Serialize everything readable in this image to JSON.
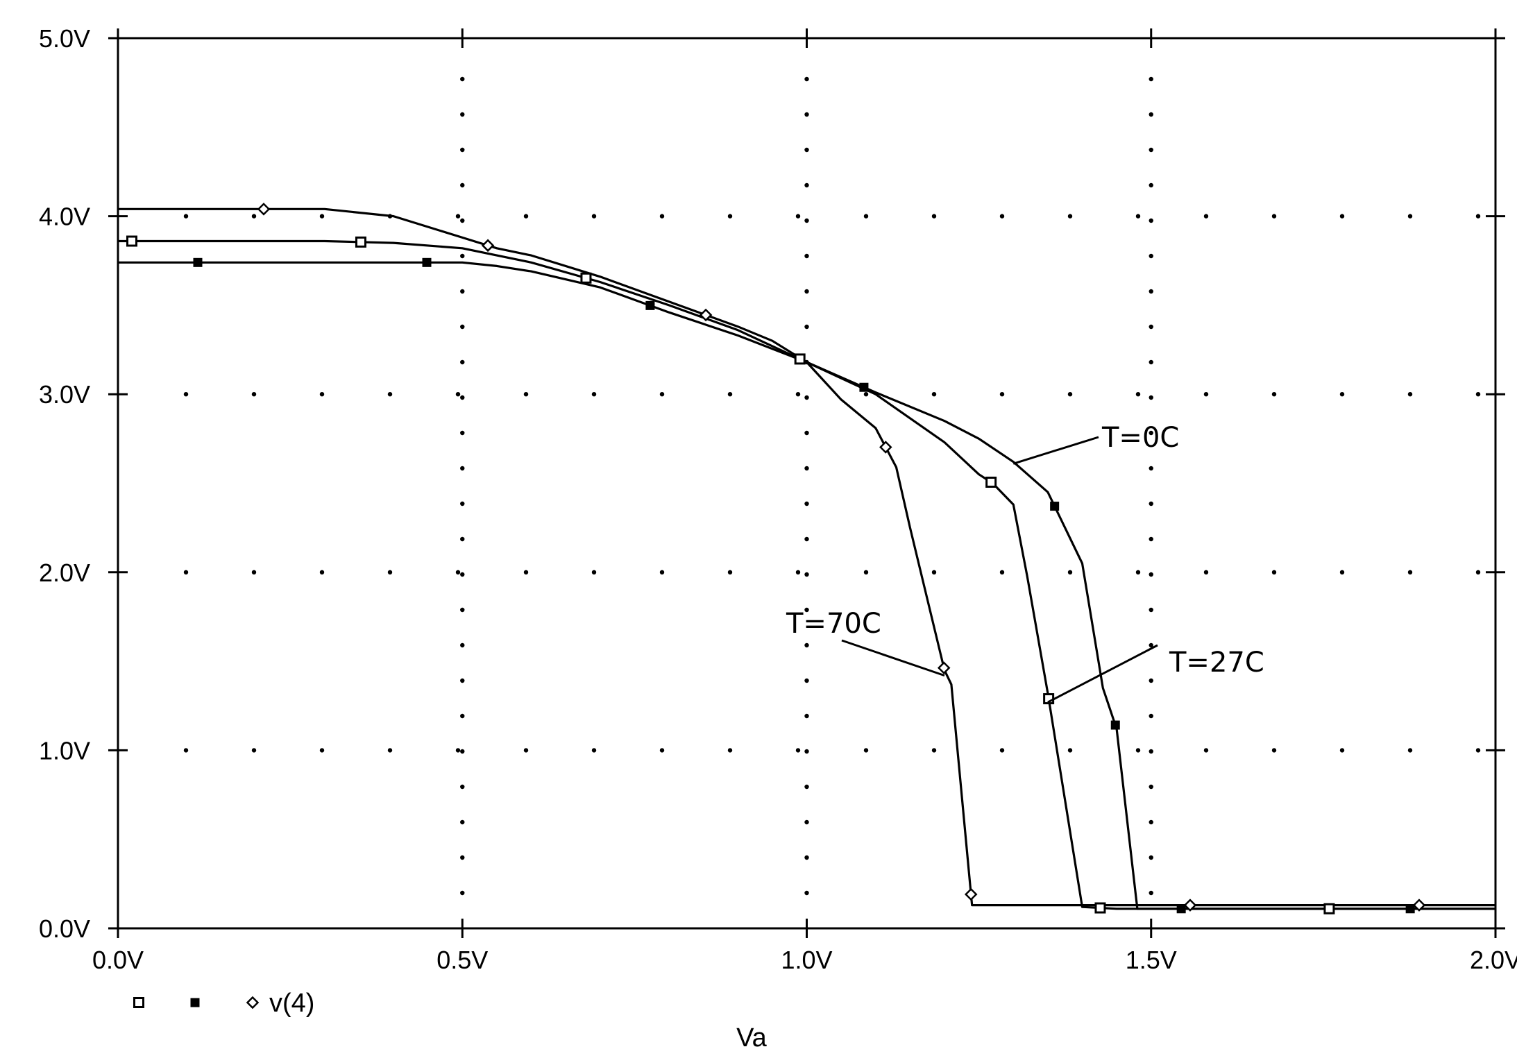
{
  "chart_data": {
    "type": "line",
    "xlabel": "Va",
    "xlim": [
      0,
      2.0
    ],
    "ylim": [
      0,
      5.0
    ],
    "x_ticks": [
      "0.0V",
      "0.5V",
      "1.0V",
      "1.5V",
      "2.0V"
    ],
    "y_ticks": [
      "0.0V",
      "1.0V",
      "2.0V",
      "3.0V",
      "4.0V",
      "5.0V"
    ],
    "grid": "dotted",
    "legend_position": "bottom-left",
    "legend_entries": [
      {
        "marker": "open-square",
        "label": ""
      },
      {
        "marker": "filled-square",
        "label": ""
      },
      {
        "marker": "diamond",
        "label": "v(4)"
      }
    ],
    "series": [
      {
        "marker": "open-square",
        "color": "#000000",
        "x": [
          0,
          0.1,
          0.2,
          0.3,
          0.4,
          0.5,
          0.55,
          0.6,
          0.7,
          0.8,
          0.9,
          1.0,
          1.1,
          1.2,
          1.25,
          1.27,
          1.3,
          1.32,
          1.35,
          1.4,
          1.45,
          1.5,
          1.6,
          1.8,
          2.0
        ],
        "y": [
          3.86,
          3.86,
          3.86,
          3.86,
          3.85,
          3.82,
          3.78,
          3.74,
          3.63,
          3.5,
          3.36,
          3.18,
          3.0,
          2.73,
          2.55,
          2.5,
          2.38,
          1.98,
          1.32,
          0.12,
          0.11,
          0.11,
          0.11,
          0.11,
          0.11
        ]
      },
      {
        "marker": "filled-square",
        "color": "#000000",
        "x": [
          0,
          0.1,
          0.2,
          0.3,
          0.4,
          0.5,
          0.55,
          0.6,
          0.7,
          0.8,
          0.9,
          1.0,
          1.1,
          1.2,
          1.25,
          1.3,
          1.35,
          1.4,
          1.43,
          1.45,
          1.48,
          1.5,
          1.6,
          1.8,
          2.0
        ],
        "y": [
          3.74,
          3.74,
          3.74,
          3.74,
          3.74,
          3.74,
          3.72,
          3.69,
          3.6,
          3.46,
          3.33,
          3.18,
          3.01,
          2.85,
          2.75,
          2.62,
          2.45,
          2.05,
          1.35,
          1.12,
          0.11,
          0.11,
          0.11,
          0.11,
          0.11
        ]
      },
      {
        "marker": "diamond",
        "color": "#000000",
        "x": [
          0,
          0.1,
          0.2,
          0.3,
          0.4,
          0.45,
          0.5,
          0.55,
          0.6,
          0.7,
          0.8,
          0.9,
          0.95,
          1.0,
          1.05,
          1.1,
          1.13,
          1.15,
          1.2,
          1.21,
          1.24,
          1.25,
          1.3,
          1.4,
          1.6,
          1.8,
          2.0
        ],
        "y": [
          4.04,
          4.04,
          4.04,
          4.04,
          4.0,
          3.94,
          3.88,
          3.82,
          3.78,
          3.66,
          3.52,
          3.38,
          3.3,
          3.18,
          2.97,
          2.81,
          2.59,
          2.25,
          1.45,
          1.37,
          0.13,
          0.13,
          0.13,
          0.13,
          0.13,
          0.13,
          0.13
        ]
      }
    ],
    "annotations": [
      {
        "text": "T=0C",
        "target_x": 1.3,
        "target_y": 2.61
      },
      {
        "text": "T=27C",
        "target_x": 1.35,
        "target_y": 1.27
      },
      {
        "text": "T=70C",
        "target_x": 1.2,
        "target_y": 1.42
      }
    ]
  }
}
